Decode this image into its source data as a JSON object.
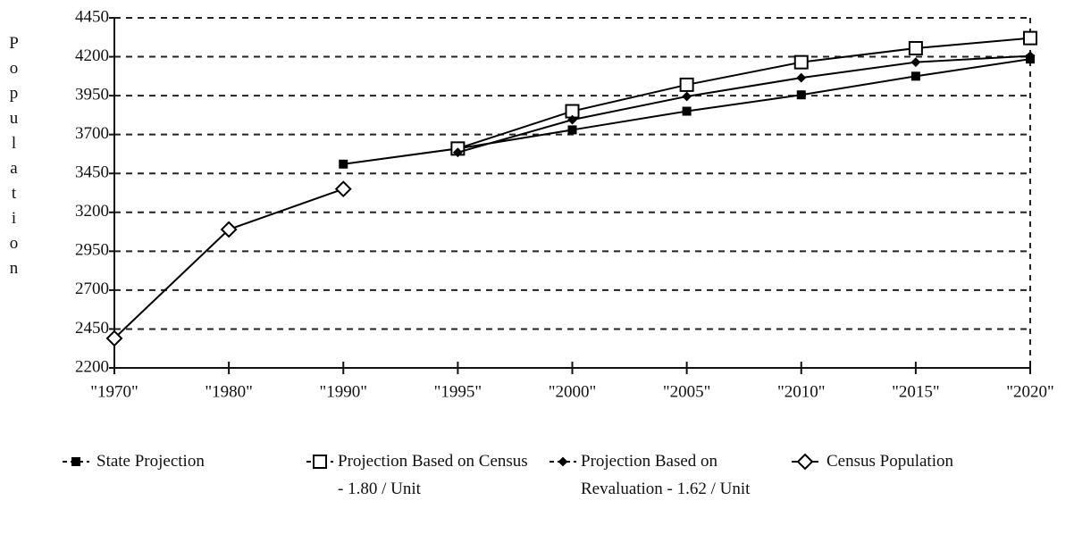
{
  "chart_data": {
    "type": "line",
    "ylabel": "Population",
    "categories": [
      "\"1970\"",
      "\"1980\"",
      "\"1990\"",
      "\"1995\"",
      "\"2000\"",
      "\"2005\"",
      "\"2010\"",
      "\"2015\"",
      "\"2020\""
    ],
    "series": [
      {
        "name": "State Projection",
        "color": "#000000",
        "marker": "square-filled",
        "values": [
          null,
          null,
          3510,
          3610,
          3730,
          3850,
          3955,
          4075,
          4185
        ]
      },
      {
        "name": "Projection Based on Census - 1.80 / Unit",
        "color": "#000000",
        "marker": "square-open",
        "values": [
          null,
          null,
          null,
          3610,
          3850,
          4020,
          4165,
          4255,
          4320
        ]
      },
      {
        "name": "Projection Based on Revaluation - 1.62 / Unit",
        "color": "#000000",
        "marker": "diamond-small",
        "values": [
          null,
          null,
          null,
          3585,
          3795,
          3945,
          4065,
          4165,
          4205
        ]
      },
      {
        "name": "Census Population",
        "color": "#000000",
        "marker": "diamond-open",
        "values": [
          2390,
          3090,
          3350,
          null,
          null,
          null,
          null,
          null,
          null
        ]
      }
    ],
    "ylim": [
      2200,
      4450
    ],
    "yticks": [
      2200,
      2450,
      2700,
      2950,
      3200,
      3450,
      3700,
      3950,
      4200,
      4450
    ],
    "grid": true
  }
}
